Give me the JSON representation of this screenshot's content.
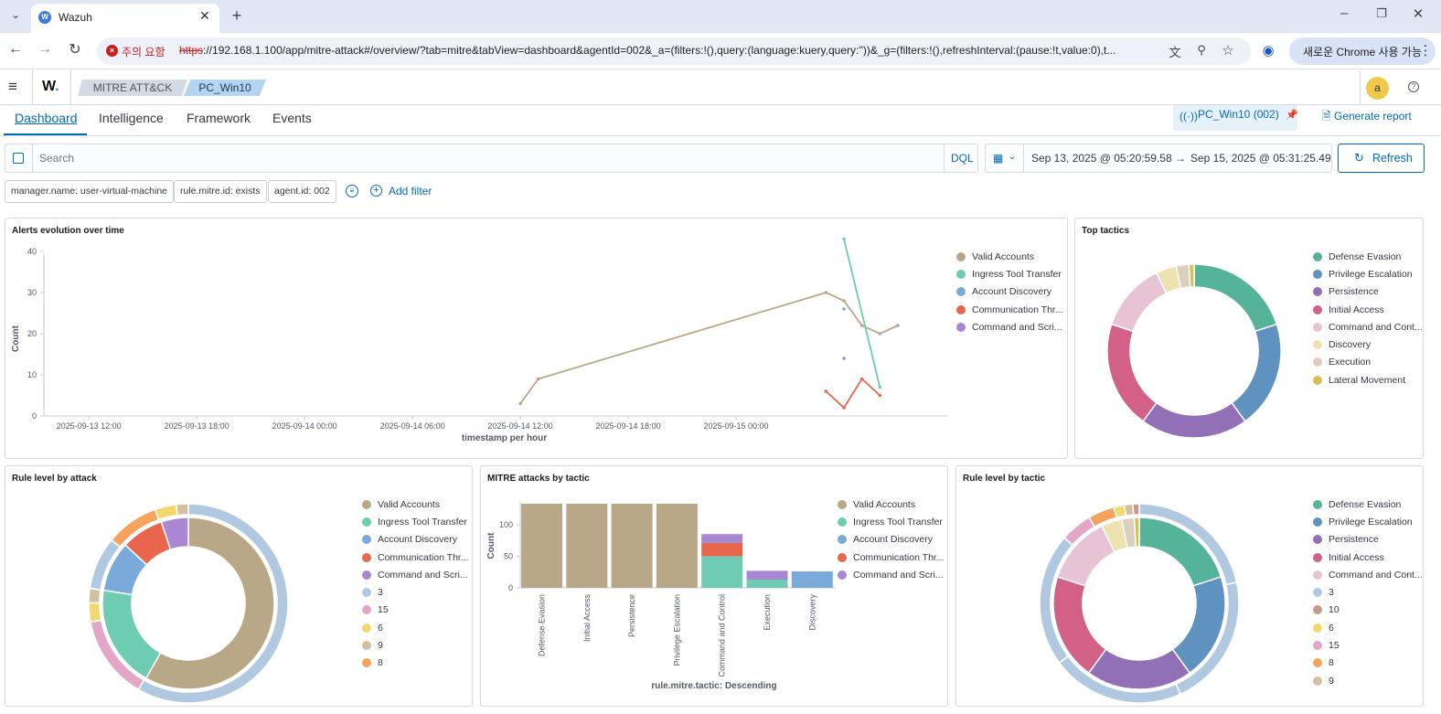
{
  "browser": {
    "tab_title": "Wazuh",
    "security_warning": "주의 요함",
    "url_scheme": "https",
    "url_rest": "://192.168.1.100/app/mitre-attack#/overview/?tab=mitre&tabView=dashboard&agentId=002&_a=(filters:!(),query:(language:kuery,query:''))&_g=(filters:!(),refreshInterval:(pause:!t,value:0),t...",
    "new_chrome_label": "새로운 Chrome 사용 가능",
    "profile_initial": "a"
  },
  "app": {
    "logo": "W.",
    "breadcrumbs": [
      "MITRE ATT&CK",
      "PC_Win10"
    ],
    "user_initial": "a"
  },
  "tabs": [
    "Dashboard",
    "Intelligence",
    "Framework",
    "Events"
  ],
  "agent_badge": "PC_Win10 (002)",
  "generate_report": "Generate report",
  "search": {
    "placeholder": "Search",
    "language": "DQL"
  },
  "time": {
    "start": "Sep 13, 2025 @ 05:20:59.58",
    "arrow": "→",
    "end": "Sep 15, 2025 @ 05:31:25.49",
    "refresh_label": "Refresh"
  },
  "filters": [
    "manager.name: user-virtual-machine",
    "rule.mitre.id: exists",
    "agent.id: 002"
  ],
  "add_filter": "Add filter",
  "colors": {
    "valid_accounts": "#b9a888",
    "ingress_tool_transfer": "#6dccb1",
    "account_discovery": "#79aad9",
    "communication_thr": "#e7664c",
    "command_and_scri": "#a987d1",
    "defense_evasion": "#54b399",
    "privilege_escalation": "#6092c0",
    "persistence": "#9170b8",
    "initial_access": "#d36086",
    "command_and_cont": "#e7c4d5",
    "discovery": "#ece3b0",
    "execution": "#dcd0bd",
    "lateral_movement": "#d6bf57",
    "level_3": "#b0c9e0",
    "level_15": "#e4a6c7",
    "level_6": "#f1d86f",
    "level_9": "#d2c0a0",
    "level_8": "#f5a35c",
    "level_10": "#c29b8c"
  },
  "panels": {
    "alerts_evolution": {
      "title": "Alerts evolution over time",
      "legend": [
        "Valid Accounts",
        "Ingress Tool Transfer",
        "Account Discovery",
        "Communication Thr...",
        "Command and Scri..."
      ]
    },
    "top_tactics": {
      "title": "Top tactics",
      "legend": [
        "Defense Evasion",
        "Privilege Escalation",
        "Persistence",
        "Initial Access",
        "Command and Cont...",
        "Discovery",
        "Execution",
        "Lateral Movement"
      ]
    },
    "rule_level_by_attack": {
      "title": "Rule level by attack",
      "legend": [
        "Valid Accounts",
        "Ingress Tool Transfer",
        "Account Discovery",
        "Communication Thr...",
        "Command and Scri...",
        "3",
        "15",
        "6",
        "9",
        "8"
      ]
    },
    "mitre_attacks_by_tactic": {
      "title": "MITRE attacks by tactic",
      "legend": [
        "Valid Accounts",
        "Ingress Tool Transfer",
        "Account Discovery",
        "Communication Thr...",
        "Command and Scri..."
      ]
    },
    "rule_level_by_tactic": {
      "title": "Rule level by tactic",
      "legend": [
        "Defense Evasion",
        "Privilege Escalation",
        "Persistence",
        "Initial Access",
        "Command and Cont...",
        "3",
        "10",
        "6",
        "15",
        "8",
        "9"
      ]
    }
  },
  "chart_data": [
    {
      "type": "line",
      "title": "Alerts evolution over time",
      "xlabel": "timestamp per hour",
      "ylabel": "Count",
      "ylim": [
        0,
        40
      ],
      "y_ticks": [
        0,
        10,
        20,
        30,
        40
      ],
      "x_ticks": [
        "2025-09-13 12:00",
        "2025-09-13 18:00",
        "2025-09-14 00:00",
        "2025-09-14 06:00",
        "2025-09-14 12:00",
        "2025-09-14 18:00",
        "2025-09-15 00:00"
      ],
      "x_range_hours": [
        -8.5,
        42
      ],
      "legend_position": "right",
      "series": [
        {
          "name": "Valid Accounts",
          "color": "#b9a888",
          "points": [
            [
              18,
              3
            ],
            [
              19,
              9
            ],
            [
              35,
              30
            ],
            [
              36,
              28
            ],
            [
              37,
              22
            ],
            [
              38,
              20
            ],
            [
              39,
              22
            ]
          ]
        },
        {
          "name": "Ingress Tool Transfer",
          "color": "#6dccb1",
          "points": [
            [
              36,
              43
            ],
            [
              38,
              7
            ]
          ]
        },
        {
          "name": "Account Discovery",
          "color": "#79aad9",
          "points": [
            [
              36,
              26
            ]
          ]
        },
        {
          "name": "Communication Thr...",
          "color": "#e7664c",
          "points": [
            [
              35,
              6
            ],
            [
              36,
              2
            ],
            [
              37,
              9
            ],
            [
              38,
              5
            ]
          ]
        },
        {
          "name": "Command and Scri...",
          "color": "#a987d1",
          "points": [
            [
              36,
              14
            ]
          ]
        }
      ]
    },
    {
      "type": "pie",
      "title": "Top tactics",
      "legend_position": "right",
      "slices": [
        {
          "label": "Defense Evasion",
          "value": 126,
          "color": "#54b399"
        },
        {
          "label": "Privilege Escalation",
          "value": 126,
          "color": "#6092c0"
        },
        {
          "label": "Persistence",
          "value": 126,
          "color": "#9170b8"
        },
        {
          "label": "Initial Access",
          "value": 126,
          "color": "#d36086"
        },
        {
          "label": "Command and Cont...",
          "value": 81,
          "color": "#e7c4d5"
        },
        {
          "label": "Discovery",
          "value": 24,
          "color": "#ece3b0"
        },
        {
          "label": "Execution",
          "value": 15,
          "color": "#dcd0bd"
        },
        {
          "label": "Lateral Movement",
          "value": 6,
          "color": "#d6bf57"
        }
      ]
    },
    {
      "type": "pie",
      "title": "Rule level by attack",
      "legend_position": "right",
      "inner": [
        {
          "label": "Valid Accounts",
          "value": 160,
          "color": "#b9a888"
        },
        {
          "label": "Ingress Tool Transfer",
          "value": 53,
          "color": "#6dccb1"
        },
        {
          "label": "Account Discovery",
          "value": 26,
          "color": "#79aad9"
        },
        {
          "label": "Communication Thr...",
          "value": 22,
          "color": "#e7664c"
        },
        {
          "label": "Command and Scri...",
          "value": 14,
          "color": "#a987d1"
        }
      ],
      "outer": [
        {
          "label": "3",
          "value": 150,
          "color": "#b0c9e0"
        },
        {
          "label": "15",
          "value": 35,
          "color": "#e4a6c7"
        },
        {
          "label": "6",
          "value": 8,
          "color": "#f1d86f"
        },
        {
          "label": "9",
          "value": 6,
          "color": "#d2c0a0"
        },
        {
          "label": "3",
          "value": 22,
          "color": "#b0c9e0"
        },
        {
          "label": "8",
          "value": 22,
          "color": "#f5a35c"
        },
        {
          "label": "6",
          "value": 9,
          "color": "#f1d86f"
        },
        {
          "label": "9",
          "value": 5,
          "color": "#d2c0a0"
        }
      ]
    },
    {
      "type": "bar",
      "title": "MITRE attacks by tactic",
      "xlabel": "rule.mitre.tactic: Descending",
      "ylabel": "Count",
      "ylim": [
        0,
        140
      ],
      "y_ticks": [
        0,
        50,
        100
      ],
      "legend_position": "right",
      "categories": [
        "Defense Evasion",
        "Initial Access",
        "Persistence",
        "Privilege Escalation",
        "Command and Control",
        "Execution",
        "Discovery"
      ],
      "series": [
        {
          "name": "Valid Accounts",
          "color": "#b9a888",
          "values": [
            133,
            133,
            133,
            133,
            0,
            0,
            0
          ]
        },
        {
          "name": "Ingress Tool Transfer",
          "color": "#6dccb1",
          "values": [
            0,
            0,
            0,
            0,
            50,
            13,
            0
          ]
        },
        {
          "name": "Account Discovery",
          "color": "#79aad9",
          "values": [
            0,
            0,
            0,
            0,
            0,
            0,
            26
          ]
        },
        {
          "name": "Communication Thr...",
          "color": "#e7664c",
          "values": [
            0,
            0,
            0,
            0,
            21,
            0,
            0
          ]
        },
        {
          "name": "Command and Scri...",
          "color": "#a987d1",
          "values": [
            0,
            0,
            0,
            0,
            14,
            14,
            0
          ]
        }
      ]
    },
    {
      "type": "pie",
      "title": "Rule level by tactic",
      "legend_position": "right",
      "inner": [
        {
          "label": "Defense Evasion",
          "value": 126,
          "color": "#54b399"
        },
        {
          "label": "Privilege Escalation",
          "value": 126,
          "color": "#6092c0"
        },
        {
          "label": "Persistence",
          "value": 126,
          "color": "#9170b8"
        },
        {
          "label": "Initial Access",
          "value": 126,
          "color": "#d36086"
        },
        {
          "label": "Command and Cont...",
          "value": 81,
          "color": "#e7c4d5"
        },
        {
          "label": "Discovery",
          "value": 24,
          "color": "#ece3b0"
        },
        {
          "label": "Execution",
          "value": 15,
          "color": "#dcd0bd"
        },
        {
          "label": "Lateral Movement",
          "value": 6,
          "color": "#d6bf57"
        }
      ],
      "outer": [
        {
          "label": "3",
          "value": 126,
          "color": "#b0c9e0"
        },
        {
          "label": "3",
          "value": 126,
          "color": "#b0c9e0"
        },
        {
          "label": "3",
          "value": 126,
          "color": "#b0c9e0"
        },
        {
          "label": "3",
          "value": 126,
          "color": "#b0c9e0"
        },
        {
          "label": "15",
          "value": 30,
          "color": "#e4a6c7"
        },
        {
          "label": "8",
          "value": 25,
          "color": "#f5a35c"
        },
        {
          "label": "6",
          "value": 10,
          "color": "#f1d86f"
        },
        {
          "label": "9",
          "value": 8,
          "color": "#d2c0a0"
        },
        {
          "label": "10",
          "value": 6,
          "color": "#c29b8c"
        }
      ]
    }
  ]
}
